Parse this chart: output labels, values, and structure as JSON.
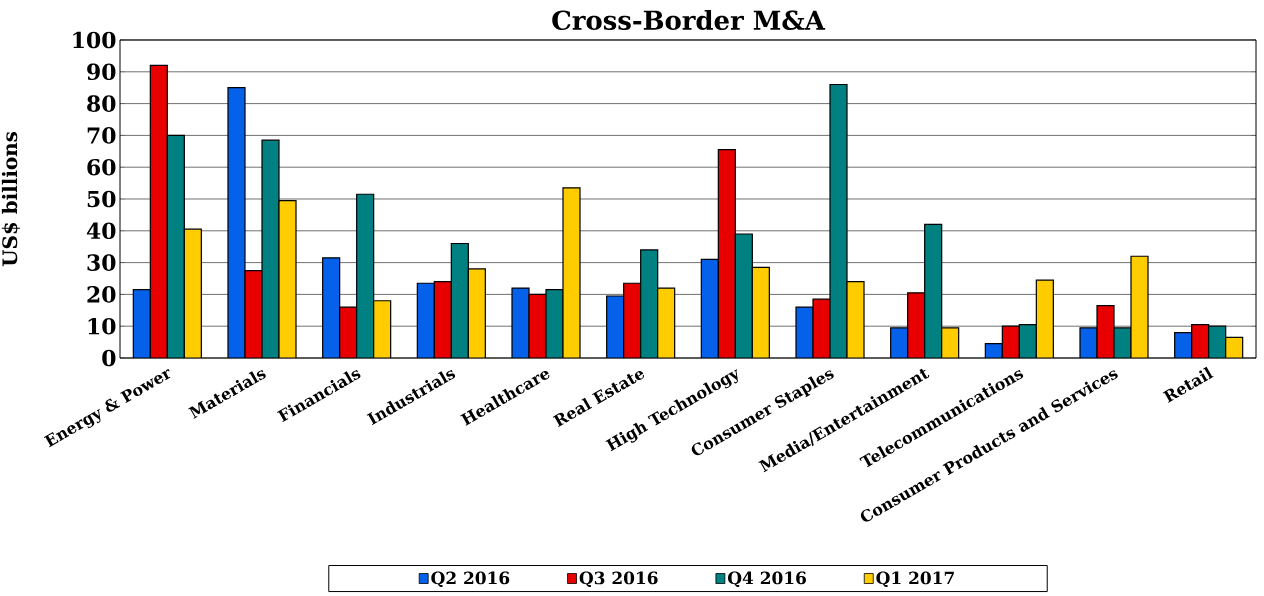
{
  "chart_data": {
    "type": "bar",
    "title": "Cross-Border M&A",
    "ylabel": "US$ billions",
    "categories": [
      "Energy & Power",
      "Materials",
      "Financials",
      "Industrials",
      "Healthcare",
      "Real Estate",
      "High Technology",
      "Consumer Staples",
      "Media/Entertainment",
      "Telecommunications",
      "Consumer Products and Services",
      "Retail"
    ],
    "series": [
      {
        "name": "Q2 2016",
        "color": "#0561e9",
        "values": [
          21.5,
          85,
          31.5,
          23.5,
          22,
          19.5,
          31,
          16,
          9.5,
          4.5,
          9.5,
          8
        ]
      },
      {
        "name": "Q3 2016",
        "color": "#e80000",
        "values": [
          92,
          27.5,
          16,
          24,
          20,
          23.5,
          65.5,
          18.5,
          20.5,
          10,
          16.5,
          10.5
        ]
      },
      {
        "name": "Q4 2016",
        "color": "#008080",
        "values": [
          70,
          68.5,
          51.5,
          36,
          21.5,
          34,
          39,
          86,
          42,
          10.5,
          9.5,
          10
        ]
      },
      {
        "name": "Q1 2017",
        "color": "#ffcc00",
        "values": [
          40.5,
          49.5,
          18,
          28,
          53.5,
          22,
          28.5,
          24,
          9.5,
          24.5,
          32,
          6.5
        ]
      }
    ],
    "ylim": [
      0,
      100
    ],
    "yticks": [
      0,
      10,
      20,
      30,
      40,
      50,
      60,
      70,
      80,
      90,
      100
    ],
    "grid": "y",
    "legend": "bottom"
  }
}
